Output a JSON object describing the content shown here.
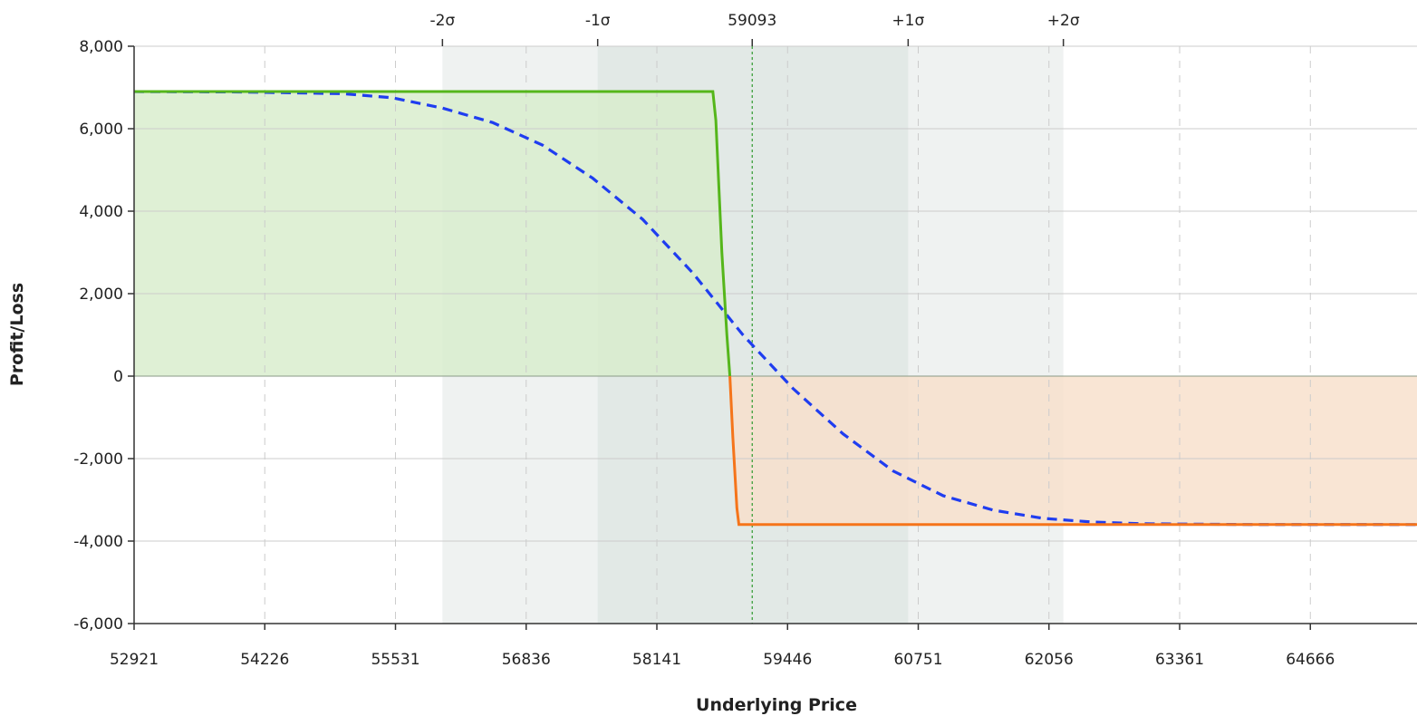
{
  "chart_data": {
    "type": "area",
    "xlabel": "Underlying Price",
    "ylabel": "Profit/Loss",
    "xlim": [
      52921,
      65731
    ],
    "ylim": [
      -6000,
      8000
    ],
    "x_ticks": [
      "52921",
      "54226",
      "55531",
      "56836",
      "58141",
      "59446",
      "60751",
      "62056",
      "63361",
      "64666"
    ],
    "x_tick_values": [
      52921,
      54226,
      55531,
      56836,
      58141,
      59446,
      60751,
      62056,
      63361,
      64666
    ],
    "y_ticks": [
      "8,000",
      "6,000",
      "4,000",
      "2,000",
      "0",
      "-2,000",
      "-4,000",
      "-6,000"
    ],
    "y_tick_values": [
      8000,
      6000,
      4000,
      2000,
      0,
      -2000,
      -4000,
      -6000
    ],
    "top_markers": [
      {
        "label": "-2σ",
        "x": 56000
      },
      {
        "label": "-1σ",
        "x": 57550
      },
      {
        "label": "59093",
        "x": 59093
      },
      {
        "label": "+1σ",
        "x": 60650
      },
      {
        "label": "+2σ",
        "x": 62200
      }
    ],
    "sigma_bands": {
      "two_sigma": [
        56000,
        62200
      ],
      "one_sigma": [
        57550,
        60650
      ]
    },
    "current_price": 59093,
    "grid": true,
    "series": [
      {
        "style": "solid",
        "points": [
          [
            52921,
            6900
          ],
          [
            58700,
            6900
          ],
          [
            58730,
            6200
          ],
          [
            58790,
            3000
          ],
          [
            58840,
            1000
          ],
          [
            58870,
            0
          ],
          [
            58900,
            -1500
          ],
          [
            58940,
            -3200
          ],
          [
            58960,
            -3600
          ],
          [
            65731,
            -3600
          ]
        ]
      },
      {
        "style": "dashed",
        "points": [
          [
            52921,
            6900
          ],
          [
            54000,
            6890
          ],
          [
            55000,
            6850
          ],
          [
            55500,
            6750
          ],
          [
            56000,
            6500
          ],
          [
            56500,
            6150
          ],
          [
            57000,
            5600
          ],
          [
            57500,
            4800
          ],
          [
            58000,
            3800
          ],
          [
            58500,
            2500
          ],
          [
            59000,
            1000
          ],
          [
            59500,
            -300
          ],
          [
            60000,
            -1400
          ],
          [
            60500,
            -2300
          ],
          [
            61000,
            -2900
          ],
          [
            61500,
            -3250
          ],
          [
            62000,
            -3450
          ],
          [
            62500,
            -3540
          ],
          [
            63000,
            -3580
          ],
          [
            64000,
            -3598
          ],
          [
            65731,
            -3600
          ]
        ]
      }
    ],
    "colors": {
      "profit_line": "#55b61b",
      "profit_fill": "#d8edcc",
      "loss_line": "#f5741a",
      "loss_fill": "#f8dfca",
      "dashed_line": "#1f3df0",
      "band_outer": "#eff2f1",
      "band_inner": "#e2e9e6",
      "current_price_line": "#2e9a2e",
      "grid": "#cccccc"
    }
  }
}
